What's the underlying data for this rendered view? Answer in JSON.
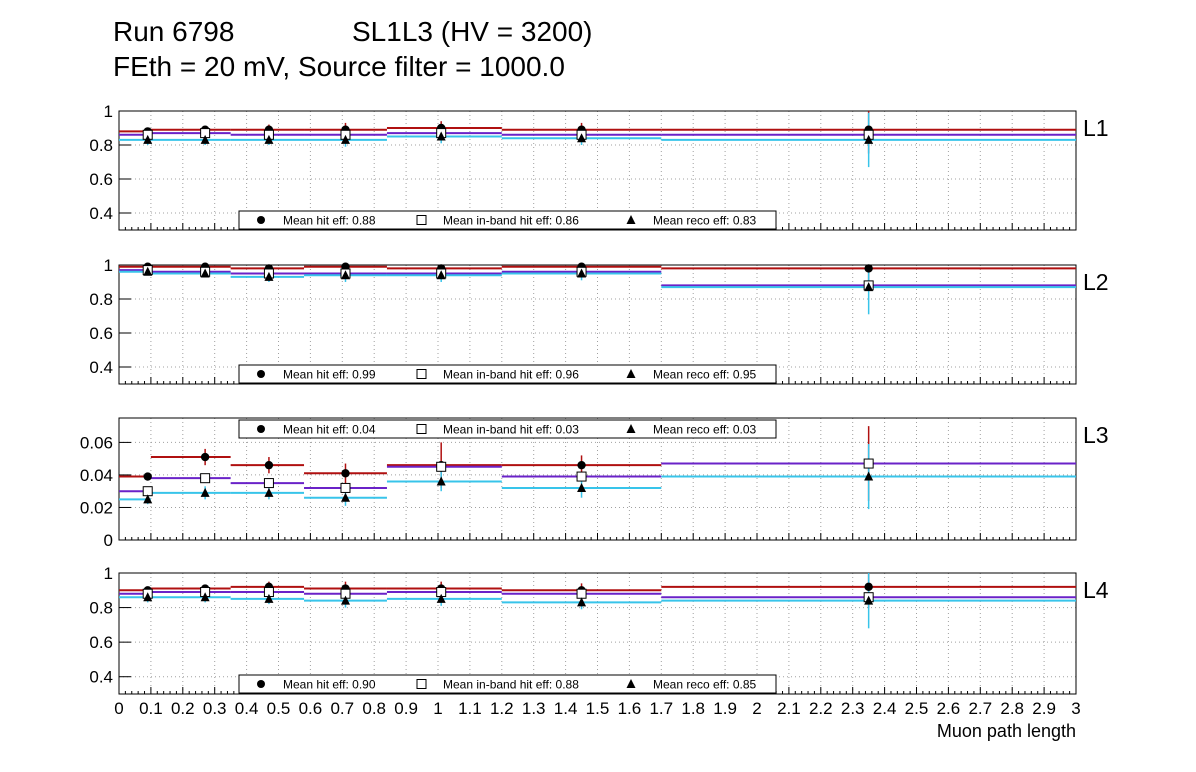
{
  "header": {
    "line1_run": "Run 6798",
    "line1_layer": "SL1L3 (HV = 3200)",
    "line2": "FEth = 20 mV, Source filter = 1000.0"
  },
  "colors": {
    "hit": "#b01010",
    "inband": "#6a22c8",
    "reco": "#38c4ea",
    "grid": "#a0a0a0",
    "frame": "#000000"
  },
  "chart_data": {
    "type": "scatter",
    "xlabel": "Muon path length",
    "xlim": [
      0,
      3
    ],
    "x_ticks": [
      "0",
      "0.1",
      "0.2",
      "0.3",
      "0.4",
      "0.5",
      "0.6",
      "0.7",
      "0.8",
      "0.9",
      "1",
      "1.1",
      "1.2",
      "1.3",
      "1.4",
      "1.5",
      "1.6",
      "1.7",
      "1.8",
      "1.9",
      "2",
      "2.1",
      "2.2",
      "2.3",
      "2.4",
      "2.5",
      "2.6",
      "2.7",
      "2.8",
      "2.9",
      "3"
    ],
    "bins": [
      [
        0,
        0.1
      ],
      [
        0.1,
        0.35
      ],
      [
        0.35,
        0.58
      ],
      [
        0.58,
        0.84
      ],
      [
        0.84,
        1.2
      ],
      [
        1.2,
        1.7
      ],
      [
        1.7,
        3.0
      ]
    ],
    "x_points": [
      0.09,
      0.27,
      0.47,
      0.71,
      1.01,
      1.45,
      2.35
    ],
    "legend_labels": {
      "hit": "Mean hit  eff: ",
      "inband": "Mean in-band hit eff: ",
      "reco": "Mean reco eff: "
    },
    "panels": [
      {
        "name": "L1",
        "ylim": [
          0.3,
          1.0
        ],
        "yticks": [
          "0.4",
          "0.6",
          "0.8",
          "1"
        ],
        "ytick_values": [
          0.4,
          0.6,
          0.8,
          1.0
        ],
        "legend_position": "bottom",
        "legend_values": {
          "hit": "0.88",
          "inband": "0.86",
          "reco": "0.83"
        },
        "series": {
          "hit": [
            0.88,
            0.89,
            0.89,
            0.89,
            0.9,
            0.89,
            0.89
          ],
          "inband": [
            0.86,
            0.87,
            0.86,
            0.86,
            0.87,
            0.86,
            0.86
          ],
          "reco": [
            0.83,
            0.83,
            0.83,
            0.83,
            0.85,
            0.84,
            0.83
          ]
        },
        "errors": {
          "hit": [
            0.02,
            0.02,
            0.03,
            0.04,
            0.04,
            0.04,
            0.14
          ],
          "reco": [
            0.03,
            0.03,
            0.03,
            0.04,
            0.04,
            0.04,
            0.16
          ]
        }
      },
      {
        "name": "L2",
        "ylim": [
          0.3,
          1.0
        ],
        "yticks": [
          "0.4",
          "0.6",
          "0.8",
          "1"
        ],
        "ytick_values": [
          0.4,
          0.6,
          0.8,
          1.0
        ],
        "legend_position": "bottom",
        "legend_values": {
          "hit": "0.99",
          "inband": "0.96",
          "reco": "0.95"
        },
        "series": {
          "hit": [
            0.99,
            0.99,
            0.98,
            0.99,
            0.98,
            0.99,
            0.98
          ],
          "inband": [
            0.97,
            0.96,
            0.95,
            0.95,
            0.95,
            0.96,
            0.88
          ],
          "reco": [
            0.96,
            0.95,
            0.93,
            0.94,
            0.94,
            0.95,
            0.87
          ]
        },
        "errors": {
          "hit": [
            0.01,
            0.01,
            0.02,
            0.02,
            0.02,
            0.02,
            0.1
          ],
          "reco": [
            0.02,
            0.02,
            0.03,
            0.04,
            0.04,
            0.04,
            0.16
          ]
        }
      },
      {
        "name": "L3",
        "ylim": [
          0,
          0.075
        ],
        "yticks": [
          "0",
          "0.02",
          "0.04",
          "0.06"
        ],
        "ytick_values": [
          0,
          0.02,
          0.04,
          0.06
        ],
        "legend_position": "top",
        "legend_values": {
          "hit": "0.04",
          "inband": "0.03",
          "reco": "0.03"
        },
        "series": {
          "hit": [
            0.039,
            0.051,
            0.046,
            0.041,
            0.046,
            0.046,
            0.047
          ],
          "inband": [
            0.03,
            0.038,
            0.035,
            0.032,
            0.045,
            0.039,
            0.047
          ],
          "reco": [
            0.025,
            0.029,
            0.029,
            0.026,
            0.036,
            0.032,
            0.039
          ]
        },
        "errors": {
          "hit": [
            0.002,
            0.005,
            0.005,
            0.006,
            0.014,
            0.006,
            0.023
          ],
          "reco": [
            0.003,
            0.004,
            0.004,
            0.005,
            0.006,
            0.006,
            0.02
          ]
        }
      },
      {
        "name": "L4",
        "ylim": [
          0.3,
          1.0
        ],
        "yticks": [
          "0.4",
          "0.6",
          "0.8",
          "1"
        ],
        "ytick_values": [
          0.4,
          0.6,
          0.8,
          1.0
        ],
        "legend_position": "bottom",
        "legend_values": {
          "hit": "0.90",
          "inband": "0.88",
          "reco": "0.85"
        },
        "series": {
          "hit": [
            0.9,
            0.91,
            0.92,
            0.91,
            0.91,
            0.9,
            0.92
          ],
          "inband": [
            0.88,
            0.89,
            0.89,
            0.88,
            0.89,
            0.88,
            0.86
          ],
          "reco": [
            0.86,
            0.86,
            0.85,
            0.84,
            0.85,
            0.83,
            0.84
          ]
        },
        "errors": {
          "hit": [
            0.02,
            0.02,
            0.03,
            0.04,
            0.04,
            0.04,
            0.12
          ],
          "reco": [
            0.03,
            0.03,
            0.03,
            0.04,
            0.04,
            0.04,
            0.16
          ]
        }
      }
    ]
  }
}
